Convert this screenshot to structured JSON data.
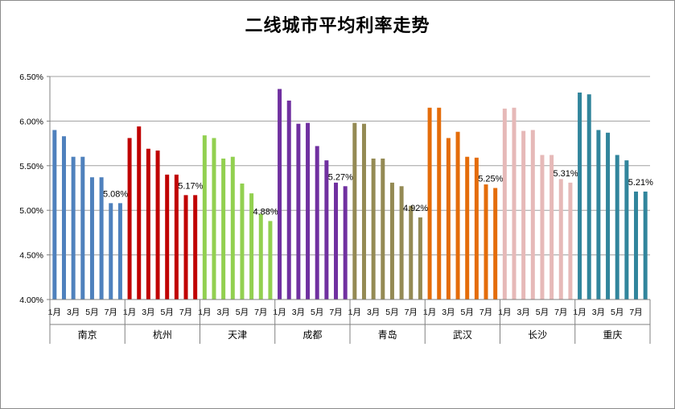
{
  "chart_data": {
    "type": "bar",
    "title": "二线城市平均利率走势",
    "ylim": [
      4.0,
      6.5
    ],
    "y_ticks": [
      "4.00%",
      "4.50%",
      "5.00%",
      "5.50%",
      "6.00%",
      "6.50%"
    ],
    "y_tick_values": [
      4.0,
      4.5,
      5.0,
      5.5,
      6.0,
      6.5
    ],
    "month_tick_labels": [
      "1月",
      "3月",
      "5月",
      "7月"
    ],
    "grid": true,
    "groups": [
      {
        "city": "南京",
        "color": "#4f81bd",
        "values": [
          5.9,
          5.83,
          5.6,
          5.6,
          5.37,
          5.37,
          5.08,
          5.08
        ],
        "label": "5.08%"
      },
      {
        "city": "杭州",
        "color": "#c00000",
        "values": [
          5.81,
          5.94,
          5.69,
          5.67,
          5.4,
          5.4,
          5.17,
          5.17
        ],
        "label": "5.17%"
      },
      {
        "city": "天津",
        "color": "#92d050",
        "values": [
          5.84,
          5.81,
          5.58,
          5.6,
          5.3,
          5.19,
          4.96,
          4.88
        ],
        "label": "4.88%"
      },
      {
        "city": "成都",
        "color": "#7030a0",
        "values": [
          6.36,
          6.23,
          5.97,
          5.98,
          5.72,
          5.56,
          5.31,
          5.27
        ],
        "label": "5.27%"
      },
      {
        "city": "青岛",
        "color": "#948a54",
        "values": [
          5.98,
          5.97,
          5.58,
          5.58,
          5.31,
          5.27,
          5.05,
          4.92
        ],
        "label": "4.92%"
      },
      {
        "city": "武汉",
        "color": "#e46c0a",
        "values": [
          6.15,
          6.15,
          5.81,
          5.88,
          5.6,
          5.59,
          5.29,
          5.25
        ],
        "label": "5.25%"
      },
      {
        "city": "长沙",
        "color": "#e6b9b8",
        "values": [
          6.14,
          6.15,
          5.89,
          5.9,
          5.62,
          5.62,
          5.35,
          5.31
        ],
        "label": "5.31%"
      },
      {
        "city": "重庆",
        "color": "#31859c",
        "values": [
          6.32,
          6.3,
          5.9,
          5.87,
          5.62,
          5.56,
          5.21,
          5.21
        ],
        "label": "5.21%"
      }
    ]
  }
}
